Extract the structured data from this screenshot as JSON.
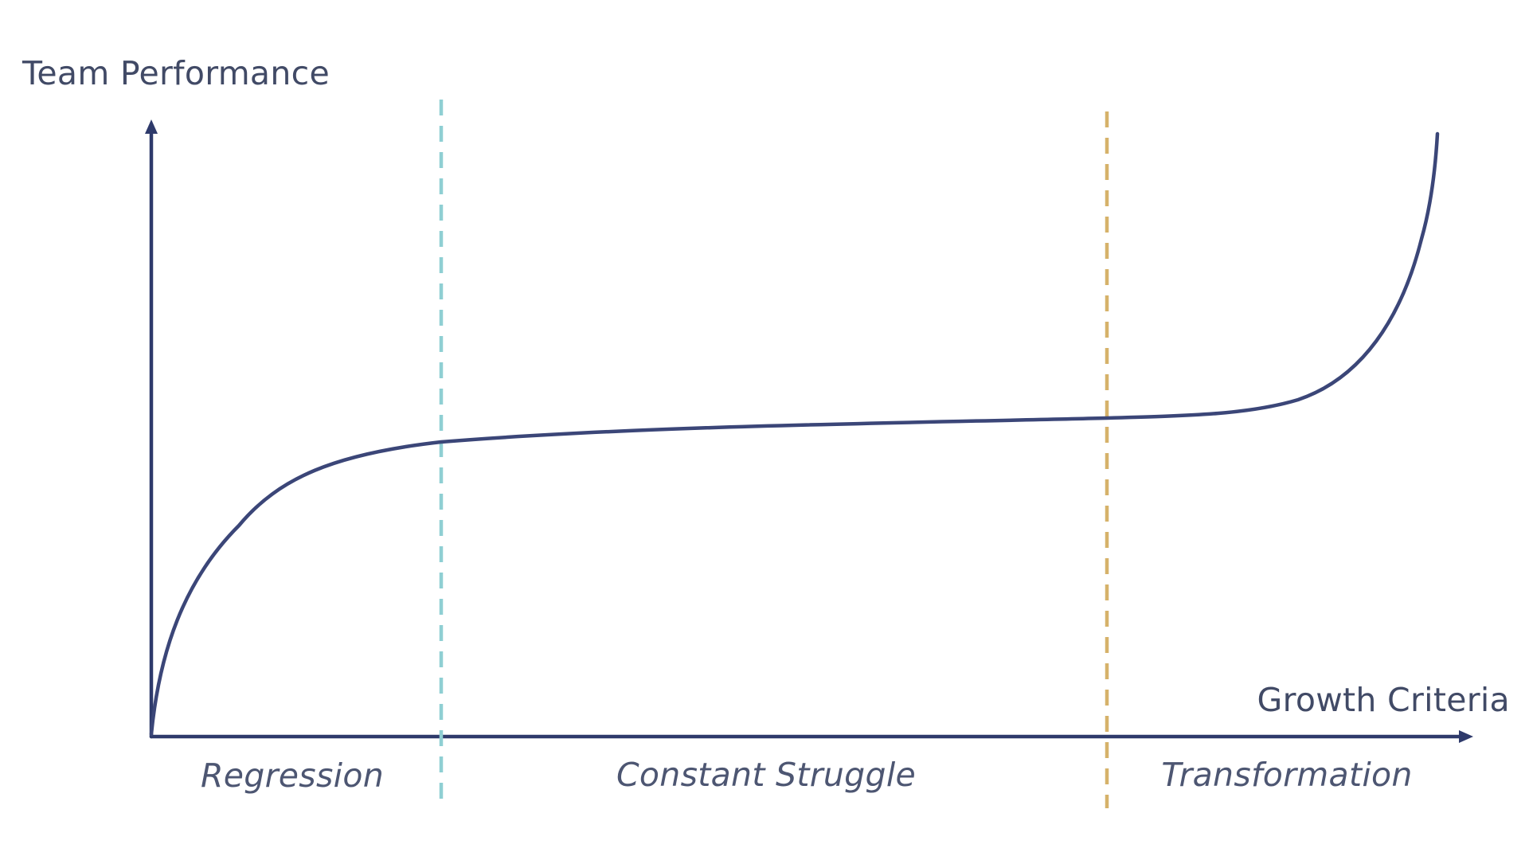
{
  "y_axis": {
    "label": "Team Performance"
  },
  "x_axis": {
    "label": "Growth Criteria"
  },
  "phases": [
    {
      "label": "Regression"
    },
    {
      "label": "Constant Struggle"
    },
    {
      "label": "Transformation"
    }
  ],
  "colors": {
    "axis": "#2e3a6b",
    "curve": "#3b4678",
    "text": "#414a66",
    "divider_regression": "#8fcfd3",
    "divider_transformation": "#d6b26a"
  }
}
